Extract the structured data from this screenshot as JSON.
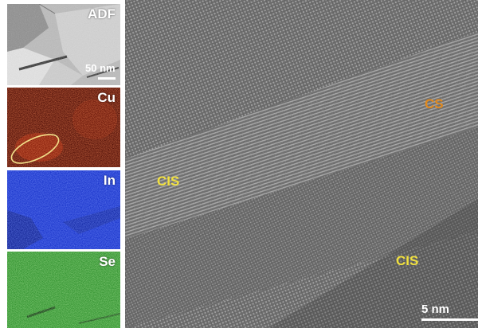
{
  "map_panels": {
    "adf": {
      "label": "ADF",
      "scalebar": "50 nm"
    },
    "cu": {
      "label": "Cu",
      "color": "#c02a10"
    },
    "in": {
      "label": "In",
      "color": "#1c36d6"
    },
    "se": {
      "label": "Se",
      "color": "#3aa838"
    }
  },
  "hrtem": {
    "scalebar": "5 nm",
    "labels": [
      {
        "text": "CS",
        "color": "#e0891e"
      },
      {
        "text": "CIS",
        "color": "#f0e040"
      },
      {
        "text": "CIS",
        "color": "#f0e040"
      }
    ]
  },
  "annotation_color": "#f2e08a"
}
